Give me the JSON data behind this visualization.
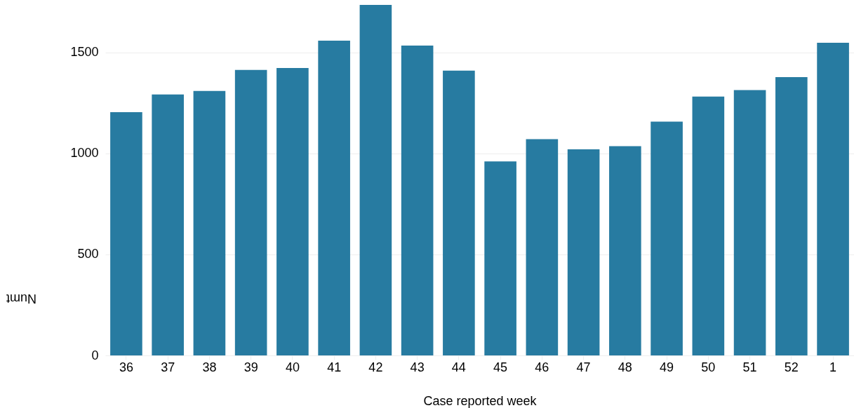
{
  "chart_data": {
    "type": "bar",
    "xlabel": "Case reported week",
    "ylabel": "Numt",
    "categories": [
      "36",
      "37",
      "38",
      "39",
      "40",
      "41",
      "42",
      "43",
      "44",
      "45",
      "46",
      "47",
      "48",
      "49",
      "50",
      "51",
      "52",
      "1"
    ],
    "values": [
      1205,
      1292,
      1310,
      1414,
      1423,
      1559,
      1736,
      1534,
      1410,
      961,
      1071,
      1021,
      1036,
      1158,
      1282,
      1314,
      1378,
      1548
    ],
    "color": "#277ba1",
    "ylim": [
      0,
      1760
    ],
    "yticks": [
      0,
      500,
      1000,
      1500
    ],
    "grid": "y"
  }
}
